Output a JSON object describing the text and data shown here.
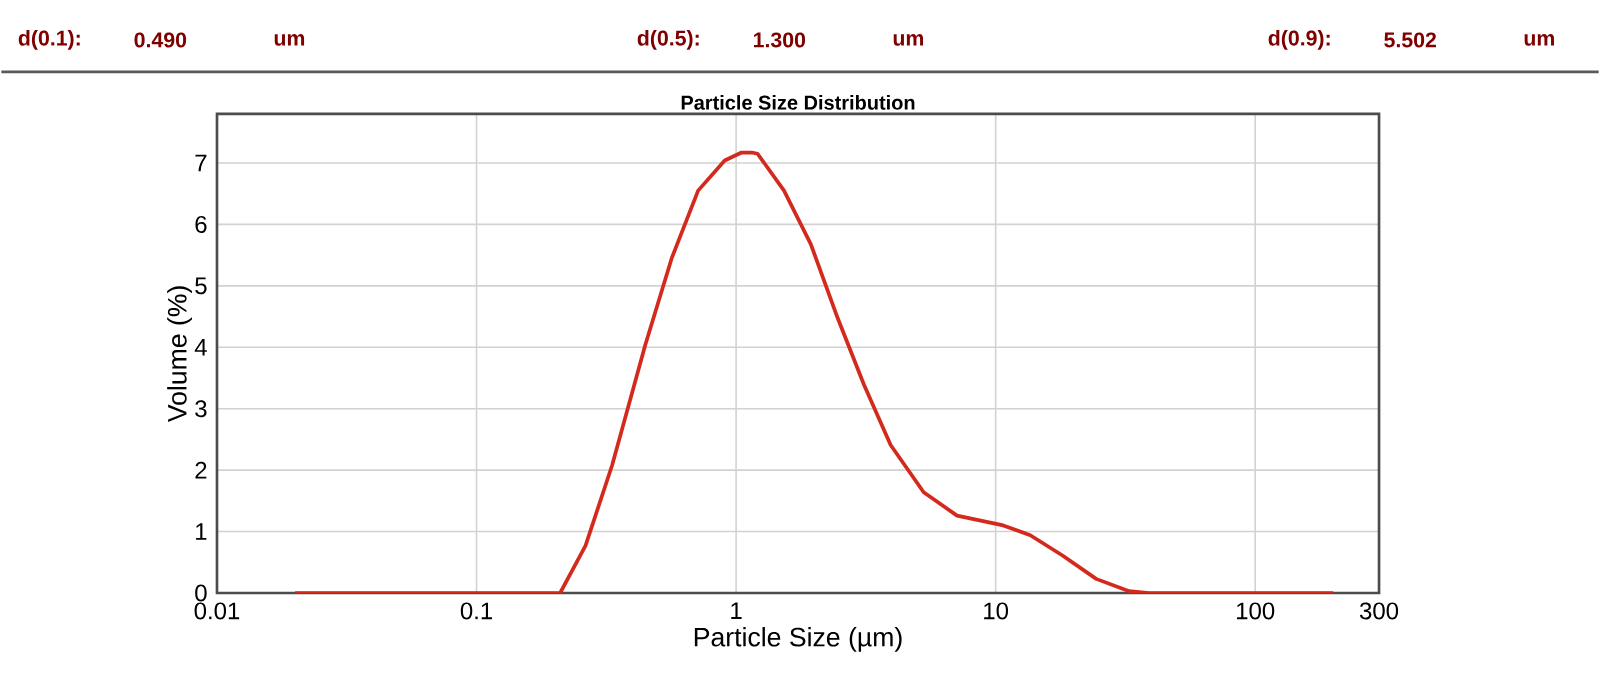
{
  "chart_data": {
    "type": "line",
    "title": "Particle Size Distribution",
    "xlabel": "Particle Size (µm)",
    "ylabel": "Volume (%)",
    "annotations": [
      "d(0.1):",
      "0.490",
      "um",
      "d(0.5):",
      "1.300",
      "um",
      "d(0.9):",
      "5.502",
      "um"
    ],
    "log": "x",
    "grid": true,
    "marker": "none",
    "line_style": "solid",
    "xlim": [
      0.01,
      300
    ],
    "ylim": [
      0,
      7.8
    ],
    "xticks": [
      0.01,
      0.1,
      1,
      10,
      100,
      300
    ],
    "yticks": [
      0,
      1,
      2,
      3,
      4,
      5,
      6,
      7
    ],
    "series": [
      {
        "color": "#d42a1e",
        "x": [
          0.02,
          0.21,
          0.263,
          0.333,
          0.447,
          0.566,
          0.714,
          0.904,
          1.05,
          1.15,
          1.21,
          1.53,
          1.94,
          2.46,
          3.11,
          3.94,
          5.28,
          7.1,
          10.7,
          13.6,
          18.1,
          24.4,
          32.7,
          39,
          200
        ],
        "values": [
          0,
          0,
          0.77,
          2.08,
          4.04,
          5.46,
          6.55,
          7.04,
          7.17,
          7.17,
          7.15,
          6.55,
          5.68,
          4.48,
          3.39,
          2.41,
          1.64,
          1.26,
          1.1,
          0.94,
          0.61,
          0.23,
          0.03,
          0,
          0
        ]
      }
    ]
  }
}
